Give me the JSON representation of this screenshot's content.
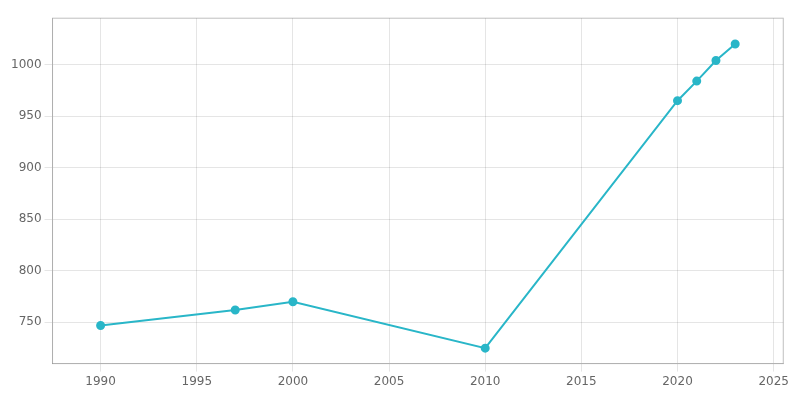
{
  "chart_data": {
    "type": "line",
    "x": [
      1990,
      1997,
      2000,
      2010,
      2020,
      2021,
      2022,
      2023
    ],
    "values": [
      747,
      762,
      770,
      725,
      965,
      984,
      1004,
      1020
    ],
    "color": "#29b6c8",
    "marker": "circle",
    "xlim": [
      1987.5,
      2025.5
    ],
    "xticks": [
      1990,
      1995,
      2000,
      2005,
      2010,
      2015,
      2020,
      2025
    ],
    "ylim": [
      710,
      1045
    ],
    "yticks": [
      750,
      800,
      850,
      900,
      950,
      1000
    ],
    "grid": true
  }
}
